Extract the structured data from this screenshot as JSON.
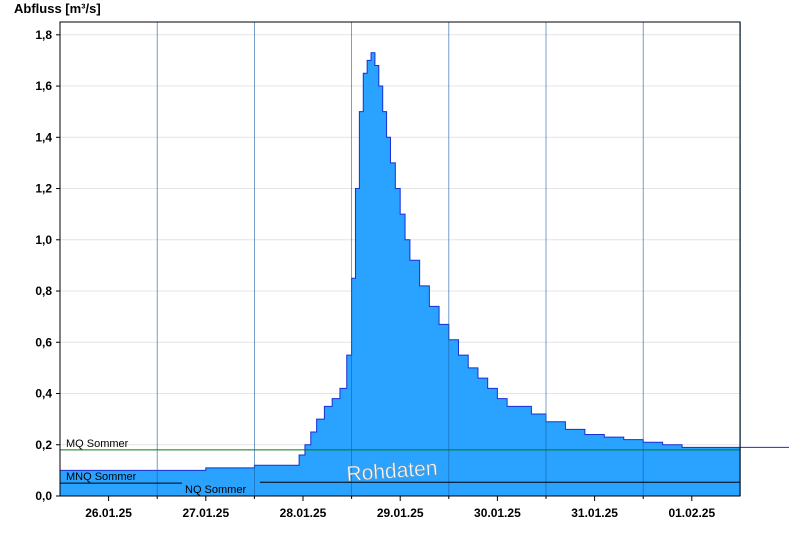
{
  "chart_data": {
    "type": "area",
    "title": "",
    "ylabel": "Abfluss [m³/s]",
    "xlabel": "",
    "ylim": [
      0,
      1.85
    ],
    "y_ticks": [
      "0,0",
      "0,2",
      "0,4",
      "0,6",
      "0,8",
      "1,0",
      "1,2",
      "1,4",
      "1,6",
      "1,8"
    ],
    "y_tick_values": [
      0,
      0.2,
      0.4,
      0.6,
      0.8,
      1.0,
      1.2,
      1.4,
      1.6,
      1.8
    ],
    "x_range": [
      "25.01.25 12:00",
      "02.02.25 00:00"
    ],
    "x_ticks": [
      "26.01.25",
      "27.01.25",
      "28.01.25",
      "29.01.25",
      "30.01.25",
      "31.01.25",
      "01.02.25"
    ],
    "grid": true,
    "fill_color": "#29a3ff",
    "line_color": "#1a2fd6",
    "series": [
      {
        "name": "",
        "x_days": [
          0,
          1.5,
          1.5,
          2.0,
          2.0,
          2.4,
          2.46,
          2.52,
          2.58,
          2.64,
          2.72,
          2.8,
          2.88,
          2.95,
          3.0,
          3.04,
          3.08,
          3.12,
          3.16,
          3.2,
          3.24,
          3.28,
          3.32,
          3.36,
          3.4,
          3.45,
          3.5,
          3.55,
          3.6,
          3.7,
          3.8,
          3.9,
          4.0,
          4.1,
          4.2,
          4.3,
          4.4,
          4.5,
          4.6,
          4.7,
          4.85,
          5.0,
          5.2,
          5.4,
          5.6,
          5.8,
          6.0,
          6.2,
          6.4,
          6.6,
          6.8,
          7.0,
          7.2,
          7.5
        ],
        "y": [
          0.1,
          0.1,
          0.11,
          0.11,
          0.12,
          0.12,
          0.16,
          0.2,
          0.25,
          0.3,
          0.35,
          0.38,
          0.42,
          0.55,
          0.85,
          1.2,
          1.5,
          1.65,
          1.7,
          1.73,
          1.68,
          1.6,
          1.5,
          1.4,
          1.3,
          1.2,
          1.1,
          1.0,
          0.92,
          0.82,
          0.74,
          0.67,
          0.61,
          0.55,
          0.5,
          0.46,
          0.42,
          0.38,
          0.35,
          0.35,
          0.32,
          0.29,
          0.26,
          0.24,
          0.23,
          0.22,
          0.21,
          0.2,
          0.19,
          0.19,
          0.19,
          0.19,
          0.19,
          0.19
        ]
      }
    ],
    "reference_lines": [
      {
        "label": "MQ Sommer",
        "value": 0.18,
        "color": "#0a7a0a"
      },
      {
        "label": "MNQ Sommer",
        "value": 0.07,
        "color": "#000000"
      },
      {
        "label": "NQ Sommer",
        "value": 0.05,
        "color": "#000000"
      }
    ],
    "annotation": "Rohdaten"
  }
}
